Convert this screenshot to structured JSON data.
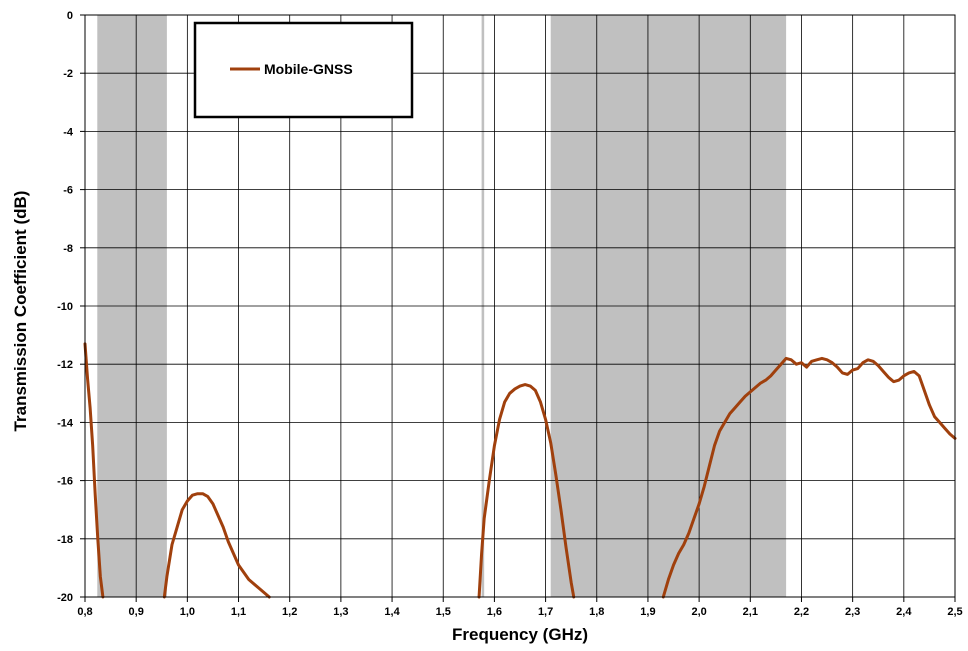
{
  "chart_data": {
    "type": "line",
    "title": "",
    "xlabel": "Frequency (GHz)",
    "ylabel": "Transmission Coefficient (dB)",
    "xlim": [
      0.8,
      2.5
    ],
    "ylim": [
      -20,
      0
    ],
    "x_ticks": [
      0.8,
      0.9,
      1.0,
      1.1,
      1.2,
      1.3,
      1.4,
      1.5,
      1.6,
      1.7,
      1.8,
      1.9,
      2.0,
      2.1,
      2.2,
      2.3,
      2.4,
      2.5
    ],
    "x_tick_labels": [
      "0,8",
      "0,9",
      "1,0",
      "1,1",
      "1,2",
      "1,3",
      "1,4",
      "1,5",
      "1,6",
      "1,7",
      "1,8",
      "1,9",
      "2,0",
      "2,1",
      "2,2",
      "2,3",
      "2,4",
      "2,5"
    ],
    "y_ticks": [
      0,
      -2,
      -4,
      -6,
      -8,
      -10,
      -12,
      -14,
      -16,
      -18,
      -20
    ],
    "y_tick_labels": [
      "0",
      "-2",
      "-4",
      "-6",
      "-8",
      "-10",
      "-12",
      "-14",
      "-16",
      "-18",
      "-20"
    ],
    "grid": true,
    "legend_position": "top-left",
    "shaded_bands": [
      {
        "from": 0.824,
        "to": 0.96
      },
      {
        "from": 1.575,
        "to": 1.58
      },
      {
        "from": 1.71,
        "to": 2.17
      }
    ],
    "band_color": "#c0c0c0",
    "series": [
      {
        "name": "Mobile-GNSS",
        "color": "#a0400d",
        "segments": [
          [
            [
              0.8,
              -11.3
            ],
            [
              0.805,
              -12.5
            ],
            [
              0.81,
              -13.5
            ],
            [
              0.815,
              -14.8
            ],
            [
              0.82,
              -16.5
            ],
            [
              0.825,
              -18.0
            ],
            [
              0.83,
              -19.3
            ],
            [
              0.835,
              -20.0
            ]
          ],
          [
            [
              0.955,
              -20.0
            ],
            [
              0.96,
              -19.3
            ],
            [
              0.97,
              -18.2
            ],
            [
              0.98,
              -17.6
            ],
            [
              0.99,
              -17.0
            ],
            [
              1.0,
              -16.7
            ],
            [
              1.01,
              -16.5
            ],
            [
              1.02,
              -16.45
            ],
            [
              1.03,
              -16.45
            ],
            [
              1.04,
              -16.55
            ],
            [
              1.05,
              -16.8
            ],
            [
              1.06,
              -17.2
            ],
            [
              1.07,
              -17.6
            ],
            [
              1.08,
              -18.1
            ],
            [
              1.09,
              -18.5
            ],
            [
              1.1,
              -18.9
            ],
            [
              1.12,
              -19.4
            ],
            [
              1.14,
              -19.7
            ],
            [
              1.16,
              -20.0
            ]
          ],
          [
            [
              1.57,
              -20.0
            ],
            [
              1.575,
              -18.5
            ],
            [
              1.58,
              -17.3
            ],
            [
              1.59,
              -16.0
            ],
            [
              1.6,
              -14.8
            ],
            [
              1.61,
              -13.9
            ],
            [
              1.62,
              -13.3
            ],
            [
              1.63,
              -13.0
            ],
            [
              1.64,
              -12.85
            ],
            [
              1.65,
              -12.75
            ],
            [
              1.66,
              -12.7
            ],
            [
              1.67,
              -12.75
            ],
            [
              1.68,
              -12.9
            ],
            [
              1.69,
              -13.3
            ],
            [
              1.7,
              -13.9
            ],
            [
              1.71,
              -14.7
            ],
            [
              1.72,
              -15.8
            ],
            [
              1.73,
              -17.0
            ],
            [
              1.74,
              -18.3
            ],
            [
              1.75,
              -19.5
            ],
            [
              1.755,
              -20.0
            ]
          ],
          [
            [
              1.93,
              -20.0
            ],
            [
              1.94,
              -19.4
            ],
            [
              1.95,
              -18.9
            ],
            [
              1.96,
              -18.5
            ],
            [
              1.97,
              -18.2
            ],
            [
              1.98,
              -17.8
            ],
            [
              1.99,
              -17.3
            ],
            [
              2.0,
              -16.8
            ],
            [
              2.01,
              -16.2
            ],
            [
              2.02,
              -15.5
            ],
            [
              2.03,
              -14.8
            ],
            [
              2.04,
              -14.3
            ],
            [
              2.05,
              -14.0
            ],
            [
              2.06,
              -13.7
            ],
            [
              2.07,
              -13.5
            ],
            [
              2.08,
              -13.3
            ],
            [
              2.09,
              -13.1
            ],
            [
              2.1,
              -12.95
            ],
            [
              2.11,
              -12.8
            ],
            [
              2.12,
              -12.65
            ],
            [
              2.13,
              -12.55
            ],
            [
              2.14,
              -12.4
            ],
            [
              2.15,
              -12.2
            ],
            [
              2.16,
              -12.0
            ],
            [
              2.17,
              -11.8
            ],
            [
              2.18,
              -11.85
            ],
            [
              2.19,
              -12.0
            ],
            [
              2.2,
              -11.95
            ],
            [
              2.21,
              -12.1
            ],
            [
              2.22,
              -11.9
            ],
            [
              2.23,
              -11.85
            ],
            [
              2.24,
              -11.8
            ],
            [
              2.25,
              -11.85
            ],
            [
              2.26,
              -11.95
            ],
            [
              2.27,
              -12.1
            ],
            [
              2.28,
              -12.3
            ],
            [
              2.29,
              -12.35
            ],
            [
              2.3,
              -12.2
            ],
            [
              2.31,
              -12.15
            ],
            [
              2.32,
              -11.95
            ],
            [
              2.33,
              -11.85
            ],
            [
              2.34,
              -11.9
            ],
            [
              2.35,
              -12.05
            ],
            [
              2.36,
              -12.25
            ],
            [
              2.37,
              -12.45
            ],
            [
              2.38,
              -12.6
            ],
            [
              2.39,
              -12.55
            ],
            [
              2.4,
              -12.4
            ],
            [
              2.41,
              -12.3
            ],
            [
              2.42,
              -12.25
            ],
            [
              2.43,
              -12.4
            ],
            [
              2.44,
              -12.9
            ],
            [
              2.45,
              -13.4
            ],
            [
              2.46,
              -13.8
            ],
            [
              2.47,
              -14.0
            ],
            [
              2.48,
              -14.2
            ],
            [
              2.49,
              -14.4
            ],
            [
              2.5,
              -14.55
            ]
          ]
        ]
      }
    ]
  }
}
